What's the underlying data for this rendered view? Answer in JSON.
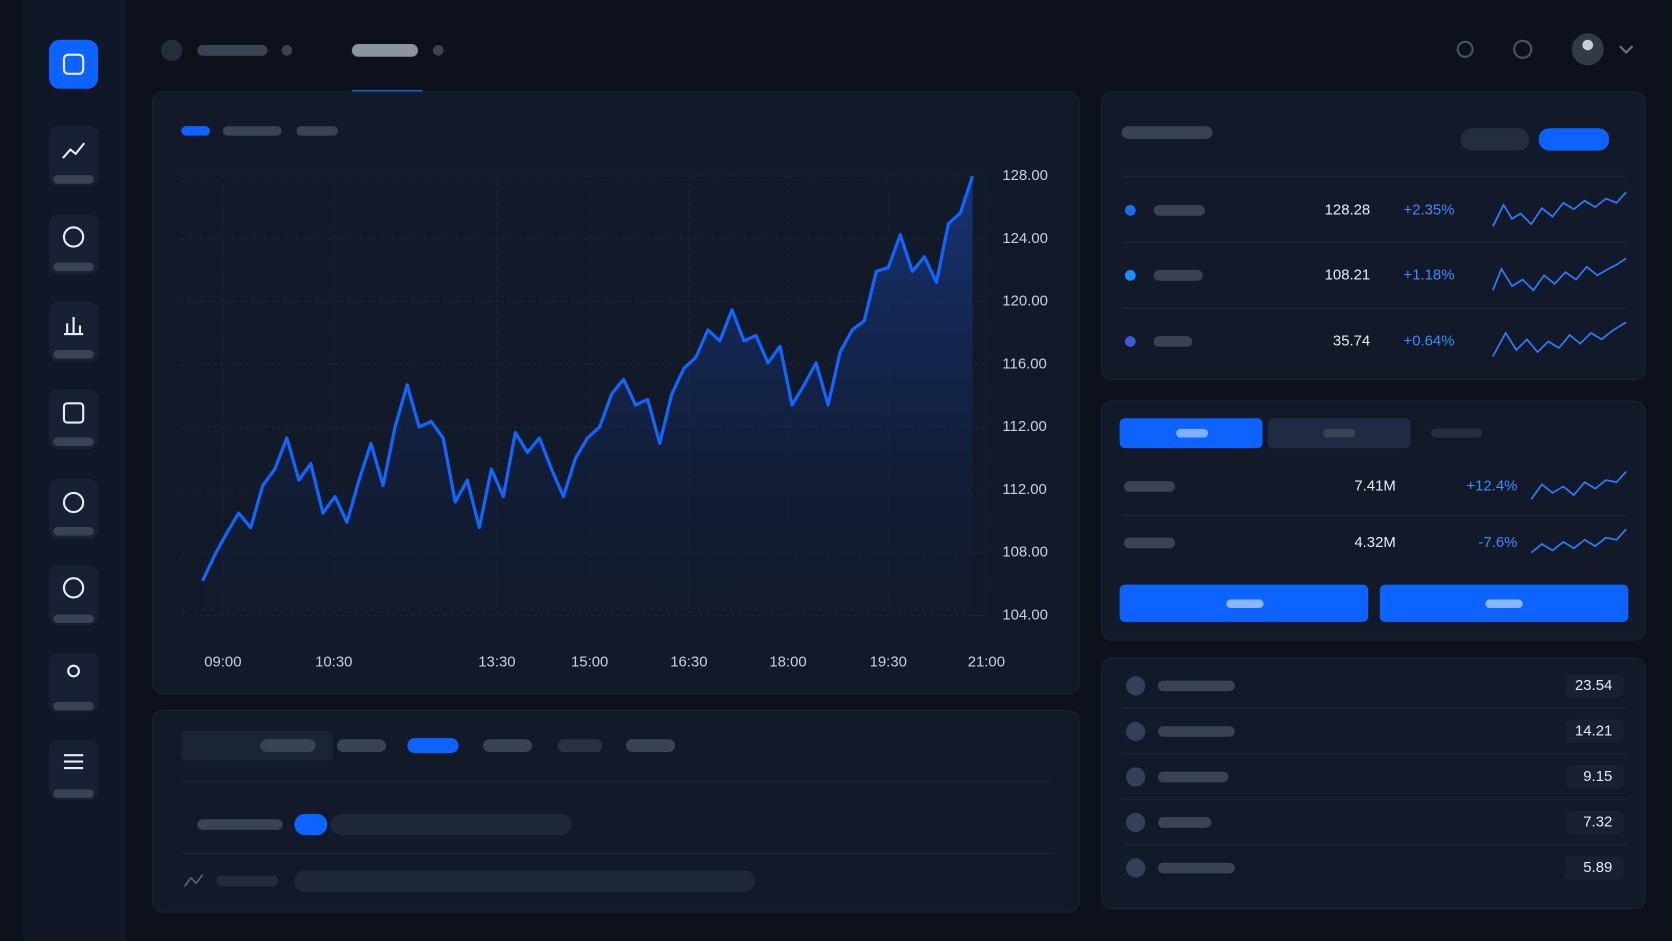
{
  "price_chart": {
    "ylim": [
      104,
      128
    ],
    "y_labels": [
      "128.00",
      "124.00",
      "120.00",
      "116.00",
      "112.00",
      "112.00",
      "108.00",
      "104.00"
    ],
    "x_labels": [
      "09:00",
      "10:30",
      "13:30",
      "15:00",
      "16:30",
      "18:00",
      "19:30",
      "21:00"
    ],
    "values": [
      105.9,
      107.3,
      108.5,
      109.6,
      108.8,
      111.1,
      112.0,
      113.7,
      111.4,
      112.3,
      109.6,
      110.5,
      109.1,
      111.4,
      113.4,
      111.1,
      114.3,
      116.6,
      114.3,
      114.6,
      113.7,
      110.2,
      111.4,
      108.8,
      112.0,
      110.5,
      114.0,
      112.9,
      113.7,
      112.0,
      110.5,
      112.6,
      113.7,
      114.3,
      116.1,
      116.9,
      115.5,
      115.8,
      113.4,
      116.1,
      117.5,
      118.1,
      119.6,
      119.0,
      120.7,
      119.0,
      119.3,
      117.8,
      118.7,
      115.5,
      116.6,
      117.8,
      115.5,
      118.4,
      119.6,
      120.1,
      122.8,
      123.0,
      124.8,
      122.8,
      123.6,
      122.2,
      125.4,
      126.0,
      128.0
    ]
  },
  "quotes": [
    {
      "price": "128.28",
      "change": "+2.35%"
    },
    {
      "price": "108.21",
      "change": "+1.18%"
    },
    {
      "price": "35.74",
      "change": "+0.64%"
    }
  ],
  "volumes": [
    {
      "value": "7.41M",
      "change": "+12.4%"
    },
    {
      "value": "4.32M",
      "change": "-7.6%"
    }
  ],
  "ranking": [
    "23.54",
    "14.21",
    "9.15",
    "7.32",
    "5.89"
  ]
}
